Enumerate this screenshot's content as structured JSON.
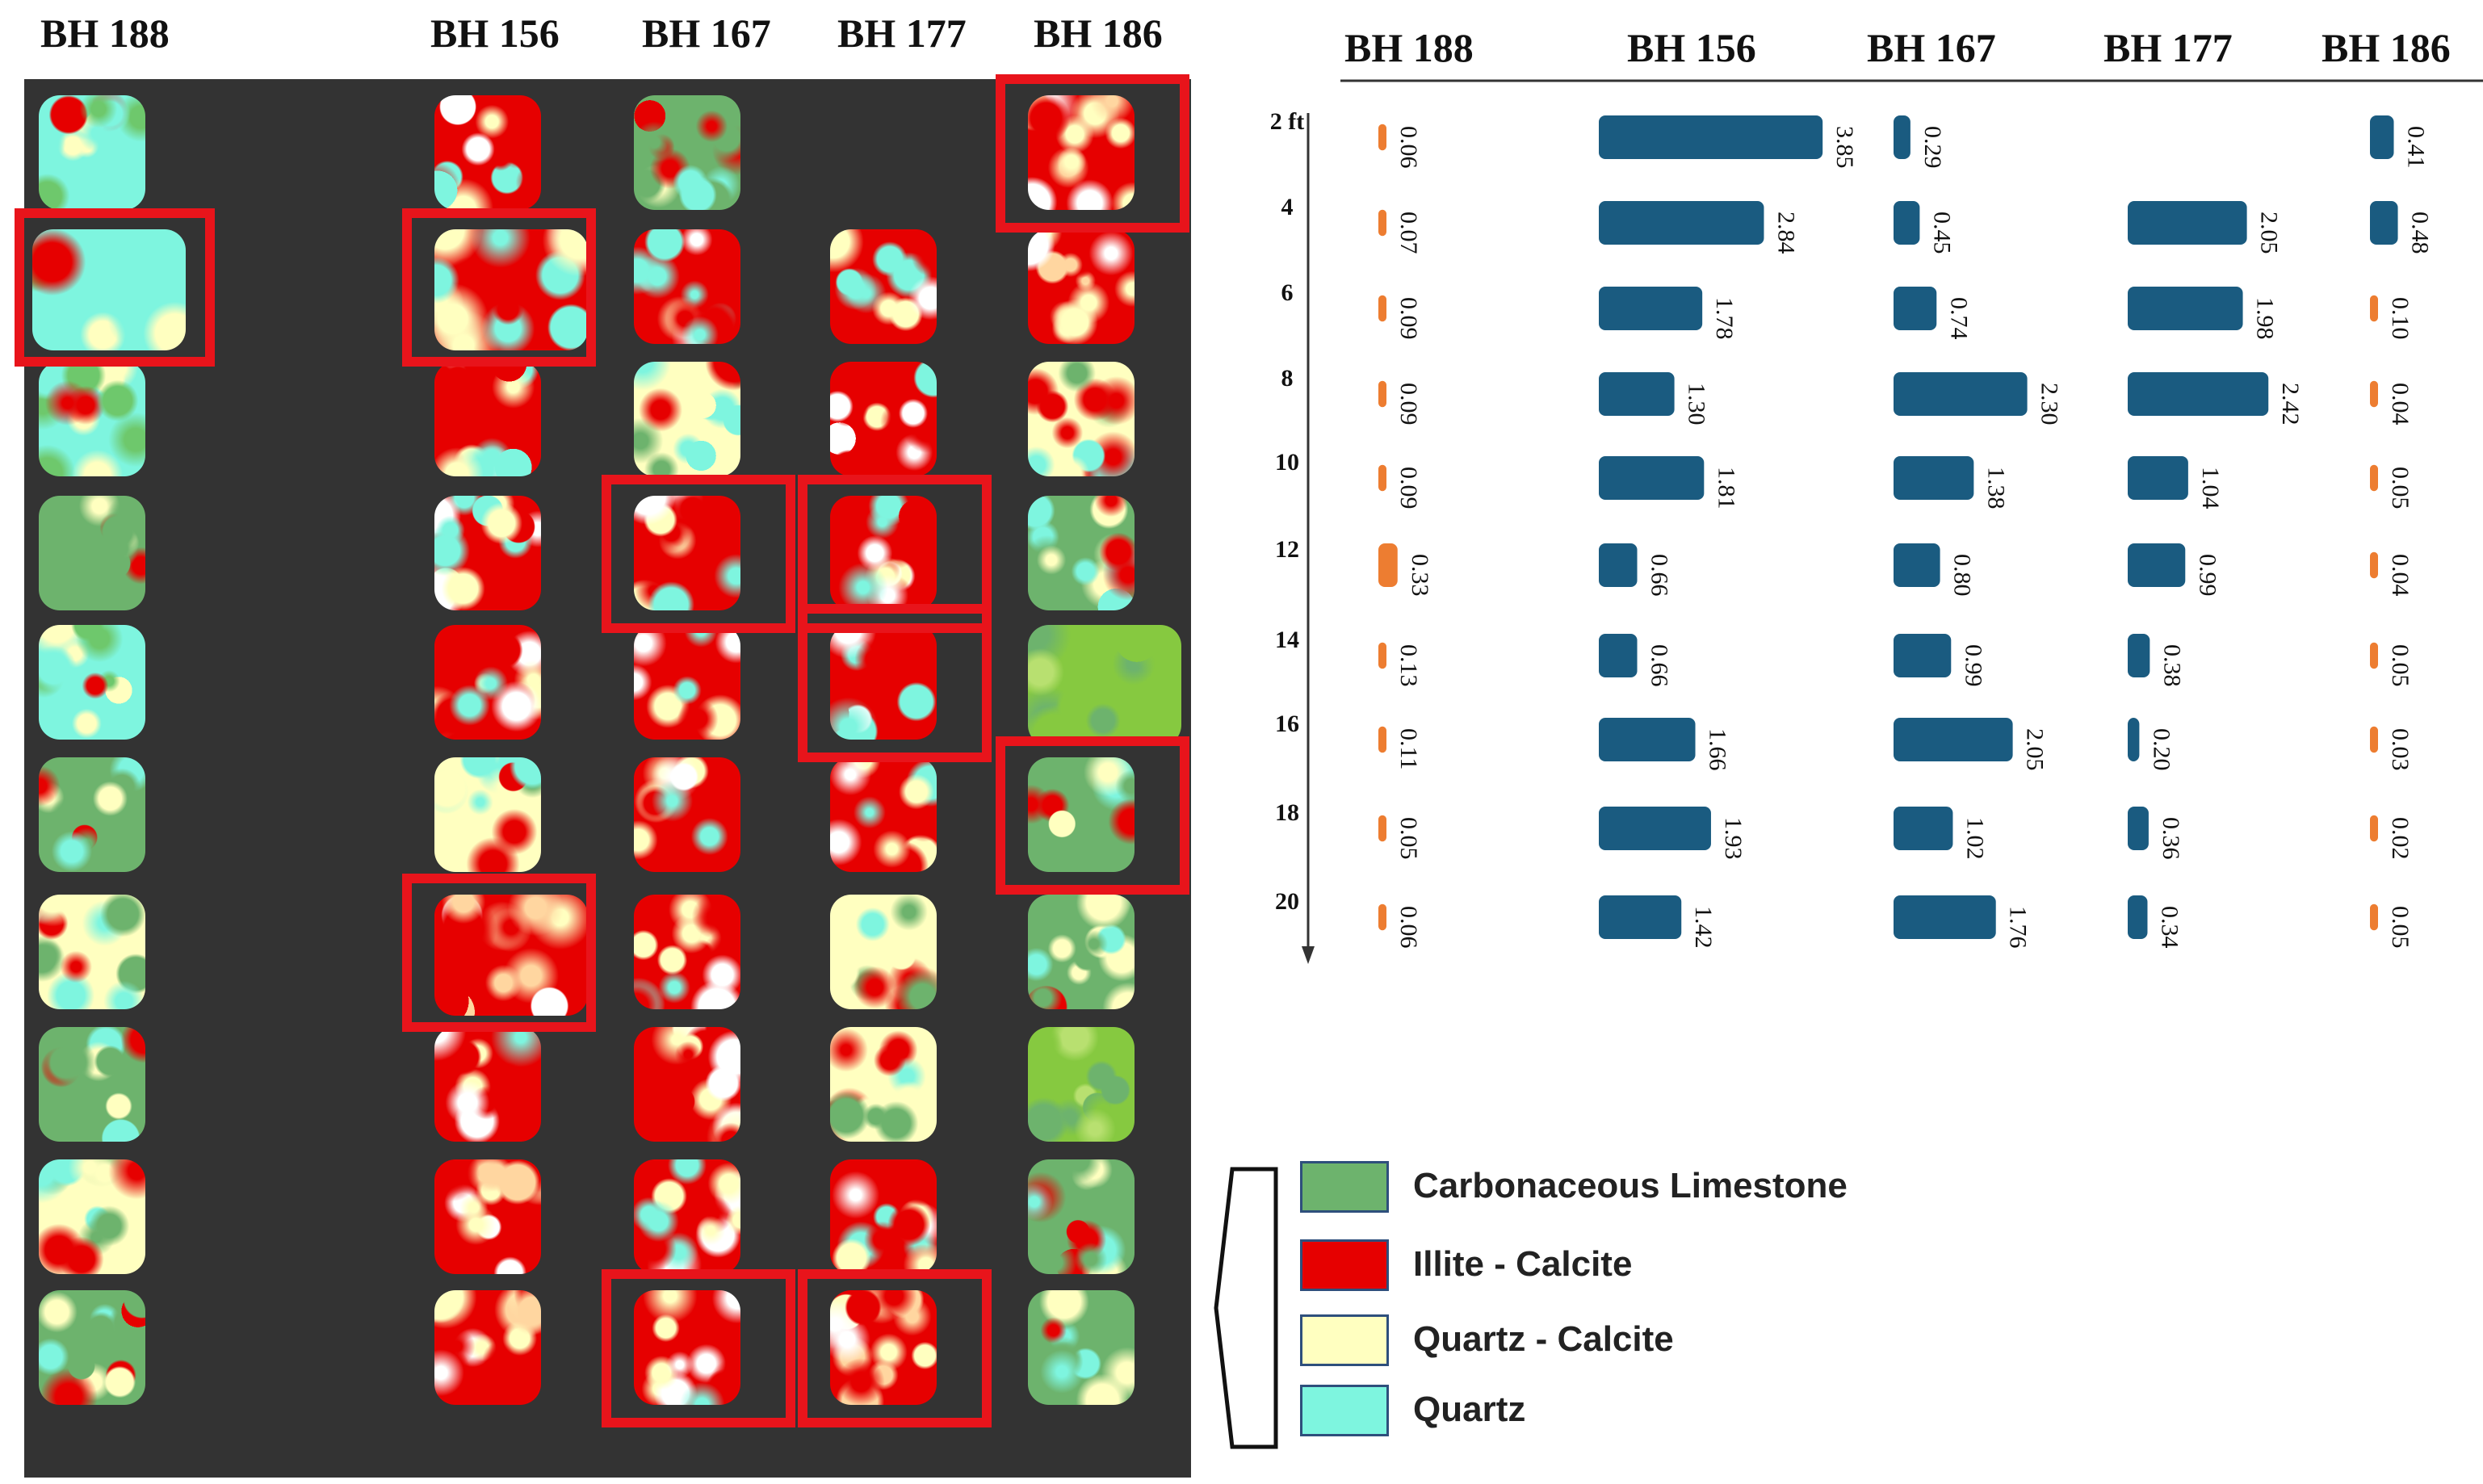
{
  "boreholes": [
    "BH 188",
    "BH 156",
    "BH 167",
    "BH 177",
    "BH 186"
  ],
  "mosaic": {
    "columns": [
      {
        "name": "BH 188",
        "samples": [
          "qz",
          "qz",
          "qz",
          "gr",
          "qz",
          "gr",
          "yg",
          "gr",
          "yg",
          "gr"
        ],
        "highlighted": [
          1
        ]
      },
      {
        "name": "BH 156",
        "samples": [
          "rd",
          "rd",
          "rd",
          "rd",
          "rd",
          "yg",
          "ry",
          "rd",
          "ry",
          "ry"
        ],
        "highlighted": [
          1,
          6
        ]
      },
      {
        "name": "BH 167",
        "samples": [
          "gr",
          "rd",
          "yg",
          "rd",
          "rd",
          "rd",
          "rd",
          "ry",
          "rd",
          "rd"
        ],
        "highlighted": [
          3,
          9
        ]
      },
      {
        "name": "BH 177",
        "samples": [
          null,
          "rd",
          "rd",
          "rd",
          "rd",
          "rd",
          "yg",
          "yg",
          "rd",
          "ry"
        ],
        "highlighted": [
          3,
          4,
          9
        ]
      },
      {
        "name": "BH 186",
        "samples": [
          "ry",
          "ry",
          "yg",
          "gr",
          "lg",
          "gr",
          "gr",
          "lg",
          "gr",
          "gr"
        ],
        "highlighted": [
          0,
          5
        ]
      }
    ]
  },
  "chart_data": {
    "type": "bar",
    "orientation": "horizontal-small-multiples",
    "ylabel_unit": "ft",
    "categories": [
      "2 ft",
      "4",
      "6",
      "8",
      "10",
      "12",
      "14",
      "16",
      "18",
      "20"
    ],
    "series": [
      {
        "name": "BH 188",
        "color": "#ed7d31",
        "values": [
          0.06,
          0.07,
          0.09,
          0.09,
          0.09,
          0.33,
          0.13,
          0.11,
          0.05,
          0.06
        ],
        "labels": [
          "0.06",
          "0.07",
          "0.09",
          "0.09",
          "0.09",
          "0.33",
          "0.13",
          "0.11",
          "0.05",
          "0.06"
        ]
      },
      {
        "name": "BH 156",
        "color": "#1a5b80",
        "values": [
          3.85,
          2.84,
          1.78,
          1.3,
          1.81,
          0.66,
          0.66,
          1.66,
          1.93,
          1.42
        ],
        "labels": [
          "3.85",
          "2.84",
          "1.78",
          "1.30",
          "1.81",
          "0.66",
          "0.66",
          "1.66",
          "1.93",
          "1.42"
        ]
      },
      {
        "name": "BH 167",
        "color": "#1a5b80",
        "values": [
          0.29,
          0.45,
          0.74,
          2.3,
          1.38,
          0.8,
          0.99,
          2.05,
          1.02,
          1.76
        ],
        "labels": [
          "0.29",
          "0.45",
          "0.74",
          "2.30",
          "1.38",
          "0.80",
          "0.99",
          "2.05",
          "1.02",
          "1.76"
        ]
      },
      {
        "name": "BH 177",
        "color": "#1a5b80",
        "values": [
          null,
          2.05,
          1.98,
          2.42,
          1.04,
          0.99,
          0.38,
          0.2,
          0.36,
          0.34
        ],
        "labels": [
          null,
          "2.05",
          "1.98",
          "2.42",
          "1.04",
          "0.99",
          "0.38",
          "0.20",
          "0.36",
          "0.34"
        ]
      },
      {
        "name": "BH 186",
        "color": "#1a5b80",
        "values": [
          0.41,
          0.48,
          0.1,
          0.04,
          0.05,
          0.04,
          0.05,
          0.03,
          0.02,
          0.05
        ],
        "labels": [
          "0.41",
          "0.48",
          "0.10",
          "0.04",
          "0.05",
          "0.04",
          "0.05",
          "0.03",
          "0.02",
          "0.05"
        ],
        "small_color": "#ed7d31"
      }
    ],
    "title": "",
    "xlabel": "",
    "ylabel": "",
    "grid": false
  },
  "legend": [
    {
      "label": "Carbonaceous  Limestone",
      "color": "#6db36d"
    },
    {
      "label": "Illite - Calcite",
      "color": "#e60000"
    },
    {
      "label": "Quartz - Calcite",
      "color": "#ffffc0"
    },
    {
      "label": "Quartz",
      "color": "#7ef5df"
    }
  ],
  "colors": {
    "panel": "#333333",
    "highlight": "#e8141b",
    "bar_primary": "#1a5b80",
    "bar_secondary": "#ed7d31"
  }
}
